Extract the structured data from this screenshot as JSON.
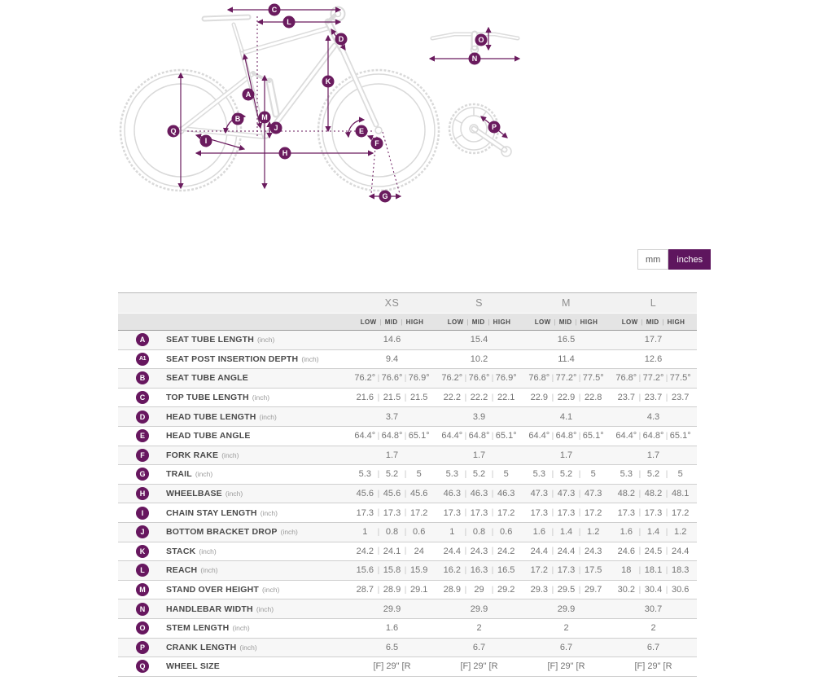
{
  "accent_color": "#6a1b5e",
  "unit_toggle": {
    "mm_label": "mm",
    "inches_label": "inches",
    "selected": "inches"
  },
  "diagram": {
    "badge_letters": {
      "a": "A",
      "b": "B",
      "c": "C",
      "d": "D",
      "e": "E",
      "f": "F",
      "g": "G",
      "h": "H",
      "i": "I",
      "j": "J",
      "k": "K",
      "l": "L",
      "m": "M",
      "n": "N",
      "o": "O",
      "p": "P",
      "q": "Q"
    }
  },
  "table": {
    "sizes": [
      "XS",
      "S",
      "M",
      "L"
    ],
    "sub_headers": [
      "LOW",
      "MID",
      "HIGH"
    ],
    "rows": [
      {
        "badge": "A",
        "label": "SEAT TUBE LENGTH",
        "unit": "(inch)",
        "values": [
          [
            "14.6"
          ],
          [
            "15.4"
          ],
          [
            "16.5"
          ],
          [
            "17.7"
          ]
        ]
      },
      {
        "badge": "A1",
        "label": "SEAT POST INSERTION DEPTH",
        "unit": "(inch)",
        "values": [
          [
            "9.4"
          ],
          [
            "10.2"
          ],
          [
            "11.4"
          ],
          [
            "12.6"
          ]
        ]
      },
      {
        "badge": "B",
        "label": "SEAT TUBE ANGLE",
        "unit": "",
        "values": [
          [
            "76.2°",
            "76.6°",
            "76.9°"
          ],
          [
            "76.2°",
            "76.6°",
            "76.9°"
          ],
          [
            "76.8°",
            "77.2°",
            "77.5°"
          ],
          [
            "76.8°",
            "77.2°",
            "77.5°"
          ]
        ]
      },
      {
        "badge": "C",
        "label": "TOP TUBE LENGTH",
        "unit": "(inch)",
        "values": [
          [
            "21.6",
            "21.5",
            "21.5"
          ],
          [
            "22.2",
            "22.2",
            "22.1"
          ],
          [
            "22.9",
            "22.9",
            "22.8"
          ],
          [
            "23.7",
            "23.7",
            "23.7"
          ]
        ]
      },
      {
        "badge": "D",
        "label": "HEAD TUBE LENGTH",
        "unit": "(inch)",
        "values": [
          [
            "3.7"
          ],
          [
            "3.9"
          ],
          [
            "4.1"
          ],
          [
            "4.3"
          ]
        ]
      },
      {
        "badge": "E",
        "label": "HEAD TUBE ANGLE",
        "unit": "",
        "values": [
          [
            "64.4°",
            "64.8°",
            "65.1°"
          ],
          [
            "64.4°",
            "64.8°",
            "65.1°"
          ],
          [
            "64.4°",
            "64.8°",
            "65.1°"
          ],
          [
            "64.4°",
            "64.8°",
            "65.1°"
          ]
        ]
      },
      {
        "badge": "F",
        "label": "FORK RAKE",
        "unit": "(inch)",
        "values": [
          [
            "1.7"
          ],
          [
            "1.7"
          ],
          [
            "1.7"
          ],
          [
            "1.7"
          ]
        ]
      },
      {
        "badge": "G",
        "label": "TRAIL",
        "unit": "(inch)",
        "values": [
          [
            "5.3",
            "5.2",
            "5"
          ],
          [
            "5.3",
            "5.2",
            "5"
          ],
          [
            "5.3",
            "5.2",
            "5"
          ],
          [
            "5.3",
            "5.2",
            "5"
          ]
        ]
      },
      {
        "badge": "H",
        "label": "WHEELBASE",
        "unit": "(inch)",
        "values": [
          [
            "45.6",
            "45.6",
            "45.6"
          ],
          [
            "46.3",
            "46.3",
            "46.3"
          ],
          [
            "47.3",
            "47.3",
            "47.3"
          ],
          [
            "48.2",
            "48.2",
            "48.1"
          ]
        ]
      },
      {
        "badge": "I",
        "label": "CHAIN STAY LENGTH",
        "unit": "(inch)",
        "values": [
          [
            "17.3",
            "17.3",
            "17.2"
          ],
          [
            "17.3",
            "17.3",
            "17.2"
          ],
          [
            "17.3",
            "17.3",
            "17.2"
          ],
          [
            "17.3",
            "17.3",
            "17.2"
          ]
        ]
      },
      {
        "badge": "J",
        "label": "BOTTOM BRACKET DROP",
        "unit": "(inch)",
        "values": [
          [
            "1",
            "0.8",
            "0.6"
          ],
          [
            "1",
            "0.8",
            "0.6"
          ],
          [
            "1.6",
            "1.4",
            "1.2"
          ],
          [
            "1.6",
            "1.4",
            "1.2"
          ]
        ]
      },
      {
        "badge": "K",
        "label": "STACK",
        "unit": "(inch)",
        "values": [
          [
            "24.2",
            "24.1",
            "24"
          ],
          [
            "24.4",
            "24.3",
            "24.2"
          ],
          [
            "24.4",
            "24.4",
            "24.3"
          ],
          [
            "24.6",
            "24.5",
            "24.4"
          ]
        ]
      },
      {
        "badge": "L",
        "label": "REACH",
        "unit": "(inch)",
        "values": [
          [
            "15.6",
            "15.8",
            "15.9"
          ],
          [
            "16.2",
            "16.3",
            "16.5"
          ],
          [
            "17.2",
            "17.3",
            "17.5"
          ],
          [
            "18",
            "18.1",
            "18.3"
          ]
        ]
      },
      {
        "badge": "M",
        "label": "STAND OVER HEIGHT",
        "unit": "(inch)",
        "values": [
          [
            "28.7",
            "28.9",
            "29.1"
          ],
          [
            "28.9",
            "29",
            "29.2"
          ],
          [
            "29.3",
            "29.5",
            "29.7"
          ],
          [
            "30.2",
            "30.4",
            "30.6"
          ]
        ]
      },
      {
        "badge": "N",
        "label": "HANDLEBAR WIDTH",
        "unit": "(inch)",
        "values": [
          [
            "29.9"
          ],
          [
            "29.9"
          ],
          [
            "29.9"
          ],
          [
            "30.7"
          ]
        ]
      },
      {
        "badge": "O",
        "label": "STEM LENGTH",
        "unit": "(inch)",
        "values": [
          [
            "1.6"
          ],
          [
            "2"
          ],
          [
            "2"
          ],
          [
            "2"
          ]
        ]
      },
      {
        "badge": "P",
        "label": "CRANK LENGTH",
        "unit": "(inch)",
        "values": [
          [
            "6.5"
          ],
          [
            "6.7"
          ],
          [
            "6.7"
          ],
          [
            "6.7"
          ]
        ]
      },
      {
        "badge": "Q",
        "label": "WHEEL SIZE",
        "unit": "",
        "values": [
          [
            "[F] 29\" [R"
          ],
          [
            "[F] 29\" [R"
          ],
          [
            "[F] 29\" [R"
          ],
          [
            "[F] 29\" [R"
          ]
        ]
      }
    ]
  }
}
